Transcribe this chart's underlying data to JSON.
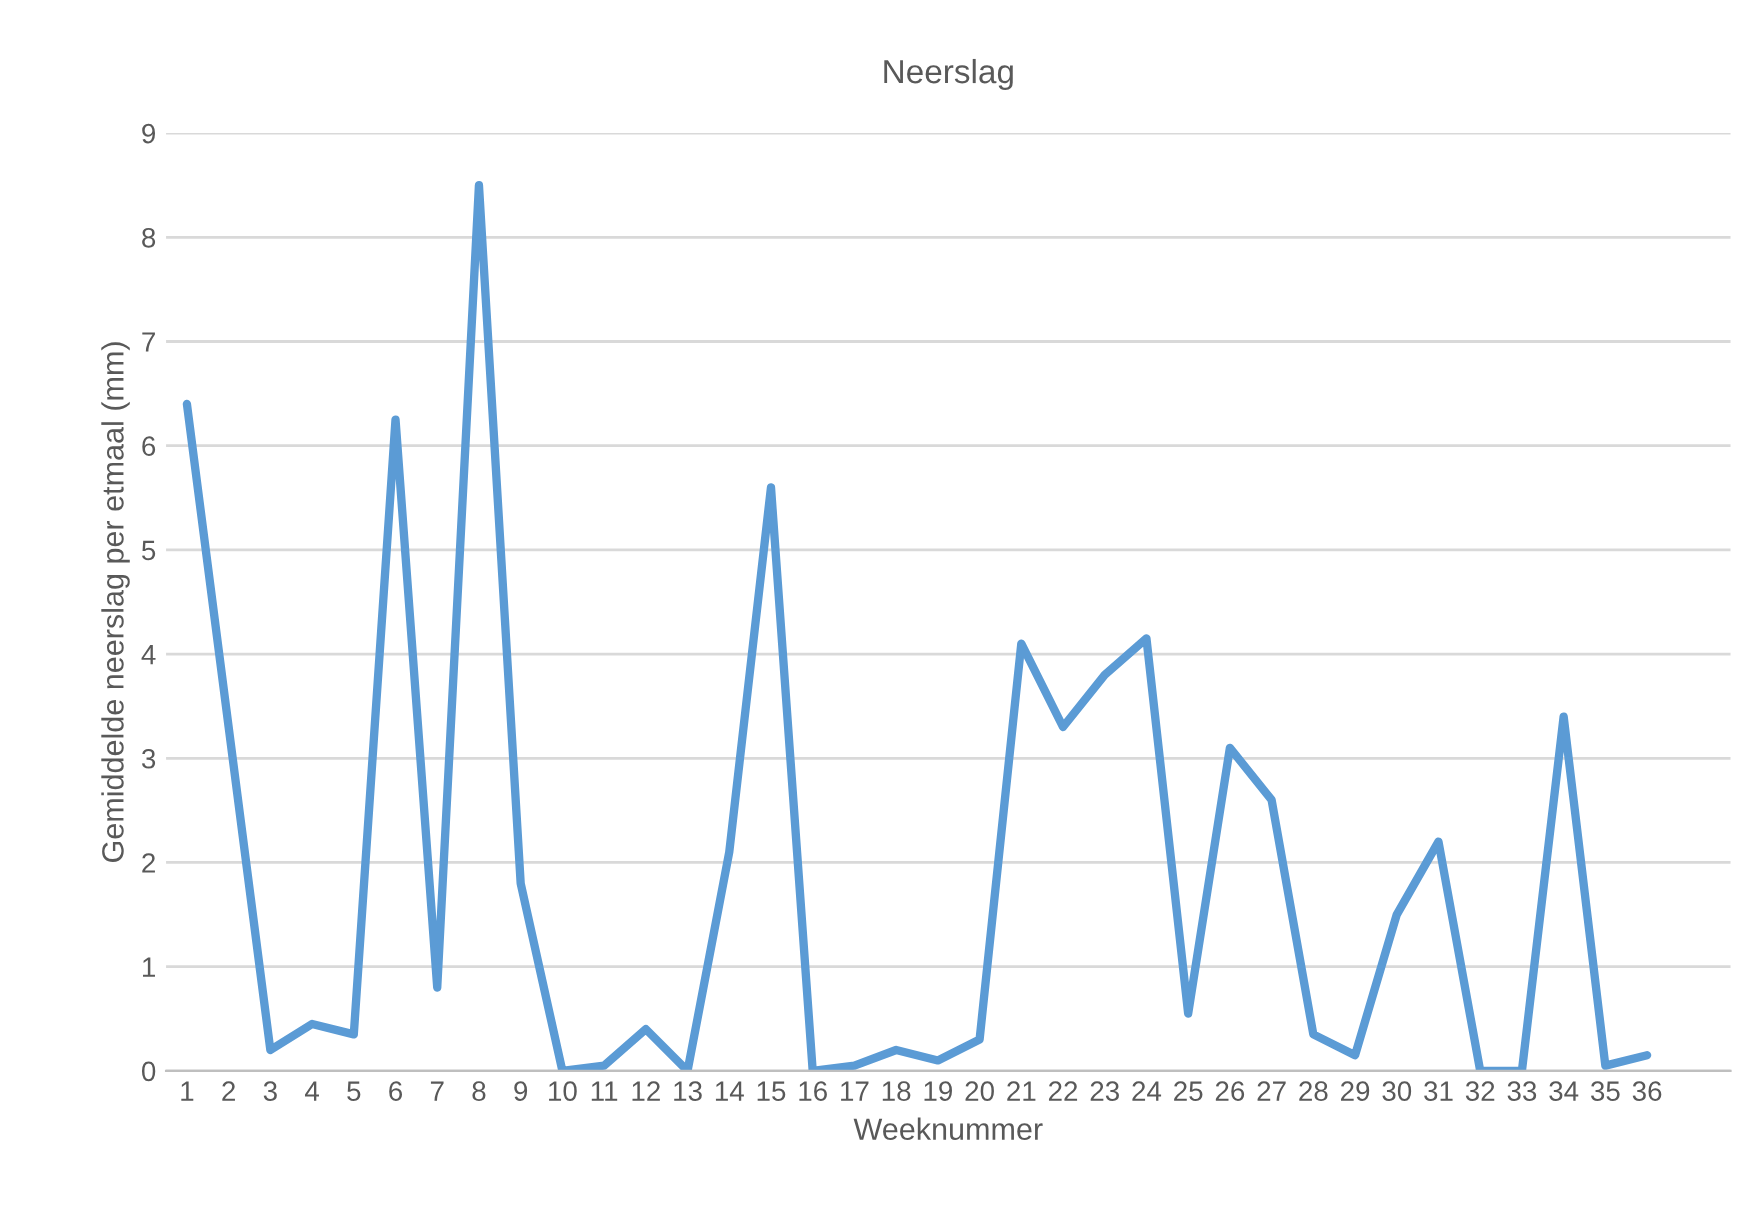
{
  "chart_data": {
    "type": "line",
    "title": "Neerslag",
    "xlabel": "Weeknummer",
    "ylabel": "Gemiddelde neerslag per etmaal (mm)",
    "categories": [
      "1",
      "2",
      "3",
      "4",
      "5",
      "6",
      "7",
      "8",
      "9",
      "10",
      "11",
      "12",
      "13",
      "14",
      "15",
      "16",
      "17",
      "18",
      "19",
      "20",
      "21",
      "22",
      "23",
      "24",
      "25",
      "26",
      "27",
      "28",
      "29",
      "30",
      "31",
      "32",
      "33",
      "34",
      "35",
      "36"
    ],
    "series": [
      {
        "color": "#5b9bd5",
        "values": [
          6.4,
          3.3,
          0.2,
          0.45,
          0.35,
          6.25,
          0.8,
          8.5,
          1.8,
          0,
          0.05,
          0.4,
          0,
          2.1,
          5.6,
          0,
          0.05,
          0.2,
          0.1,
          0.3,
          4.1,
          3.3,
          3.8,
          4.15,
          0.55,
          3.1,
          2.6,
          0.35,
          0.15,
          1.5,
          2.2,
          0,
          0,
          3.4,
          0.05,
          0.15
        ]
      }
    ],
    "ylim": [
      0,
      9
    ],
    "yticks": [
      0,
      1,
      2,
      3,
      4,
      5,
      6,
      7,
      8,
      9
    ],
    "grid": "y",
    "marker": "none",
    "line_style": "solid"
  }
}
